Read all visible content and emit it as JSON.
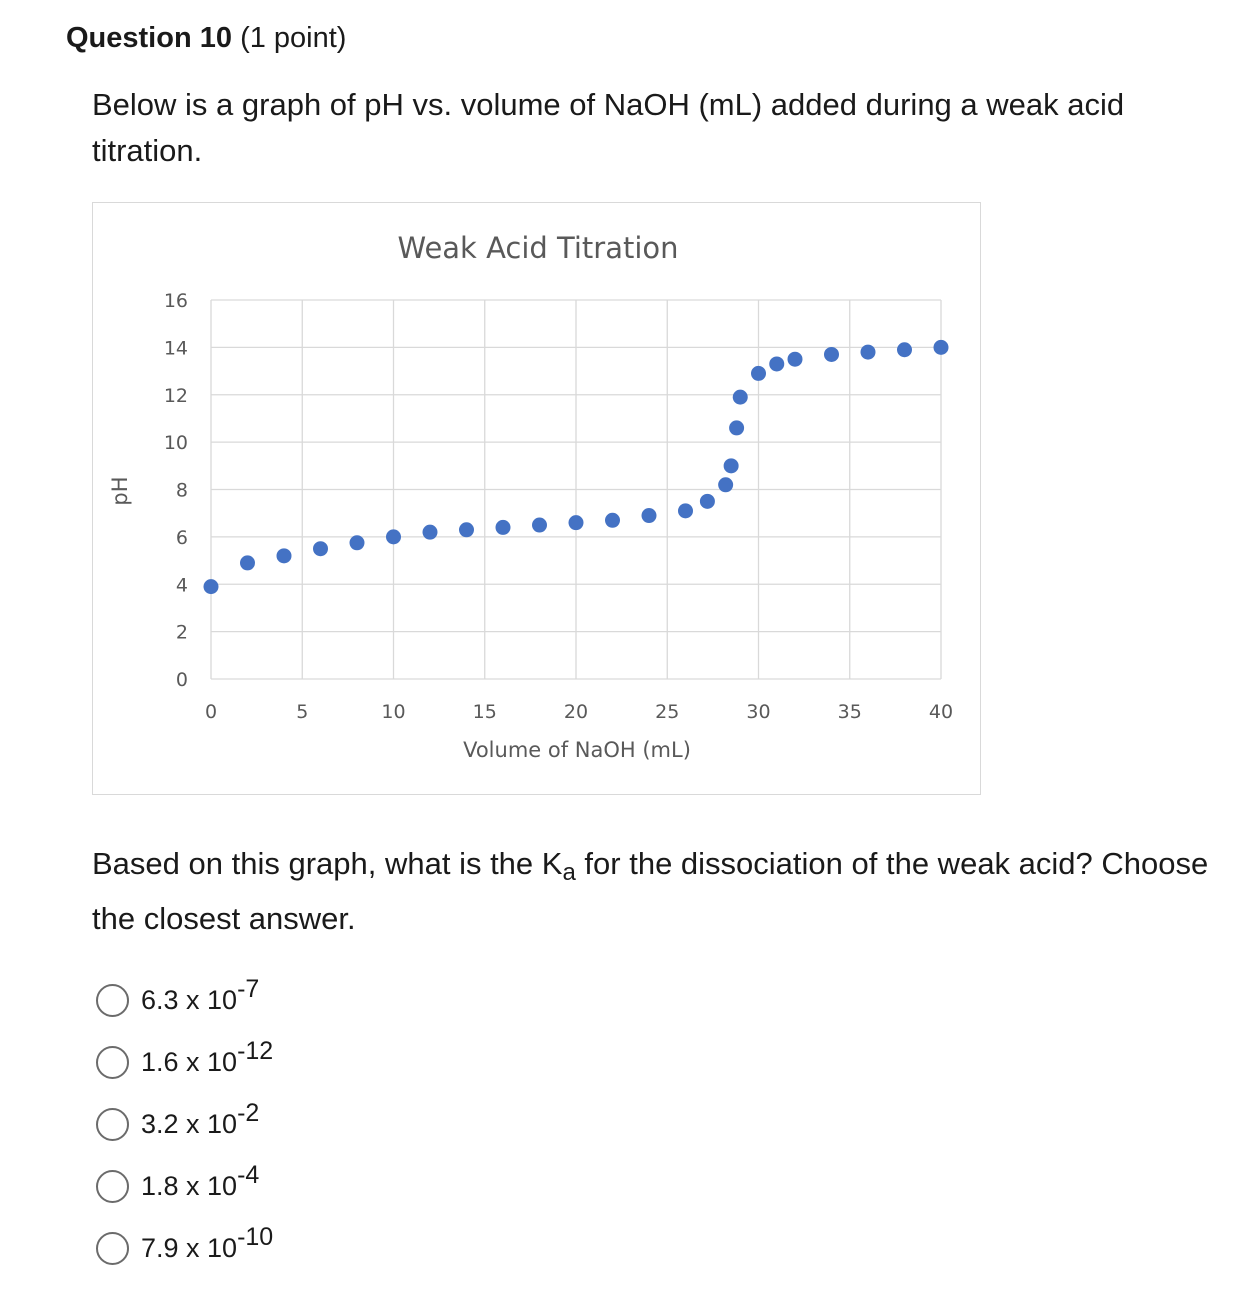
{
  "question": {
    "title": "Question 10",
    "points": "(1 point)",
    "intro": "Below is a graph of pH vs. volume of NaOH (mL) added during a weak acid titration.",
    "prompt_before": "Based on this graph, what is the K",
    "prompt_sub": "a",
    "prompt_after": " for the dissociation of the weak acid? Choose the closest answer."
  },
  "answers": [
    {
      "mantissa": "6.3 x 10",
      "exponent": "-7"
    },
    {
      "mantissa": "1.6 x 10",
      "exponent": "-12"
    },
    {
      "mantissa": "3.2 x 10",
      "exponent": "-2"
    },
    {
      "mantissa": "1.8 x 10",
      "exponent": "-4"
    },
    {
      "mantissa": "7.9 x 10",
      "exponent": "-10"
    }
  ],
  "chart_data": {
    "type": "scatter",
    "title": "Weak Acid Titration",
    "xlabel": "Volume of NaOH (mL)",
    "ylabel": "pH",
    "xlim": [
      0,
      40
    ],
    "ylim": [
      0,
      16
    ],
    "xticks": [
      0,
      5,
      10,
      15,
      20,
      25,
      30,
      35,
      40
    ],
    "yticks": [
      0,
      2,
      4,
      6,
      8,
      10,
      12,
      14,
      16
    ],
    "grid": true,
    "marker_color": "#4472C4",
    "points": [
      [
        0,
        3.9
      ],
      [
        2,
        4.9
      ],
      [
        4,
        5.2
      ],
      [
        6,
        5.5
      ],
      [
        8,
        5.75
      ],
      [
        10,
        6.0
      ],
      [
        12,
        6.2
      ],
      [
        14,
        6.3
      ],
      [
        16,
        6.4
      ],
      [
        18,
        6.5
      ],
      [
        20,
        6.6
      ],
      [
        22,
        6.7
      ],
      [
        24,
        6.9
      ],
      [
        26,
        7.1
      ],
      [
        27.2,
        7.5
      ],
      [
        28.2,
        8.2
      ],
      [
        28.5,
        9.0
      ],
      [
        28.8,
        10.6
      ],
      [
        29,
        11.9
      ],
      [
        30,
        12.9
      ],
      [
        31,
        13.3
      ],
      [
        32,
        13.5
      ],
      [
        34,
        13.7
      ],
      [
        36,
        13.8
      ],
      [
        38,
        13.9
      ],
      [
        40,
        14.0
      ]
    ]
  }
}
